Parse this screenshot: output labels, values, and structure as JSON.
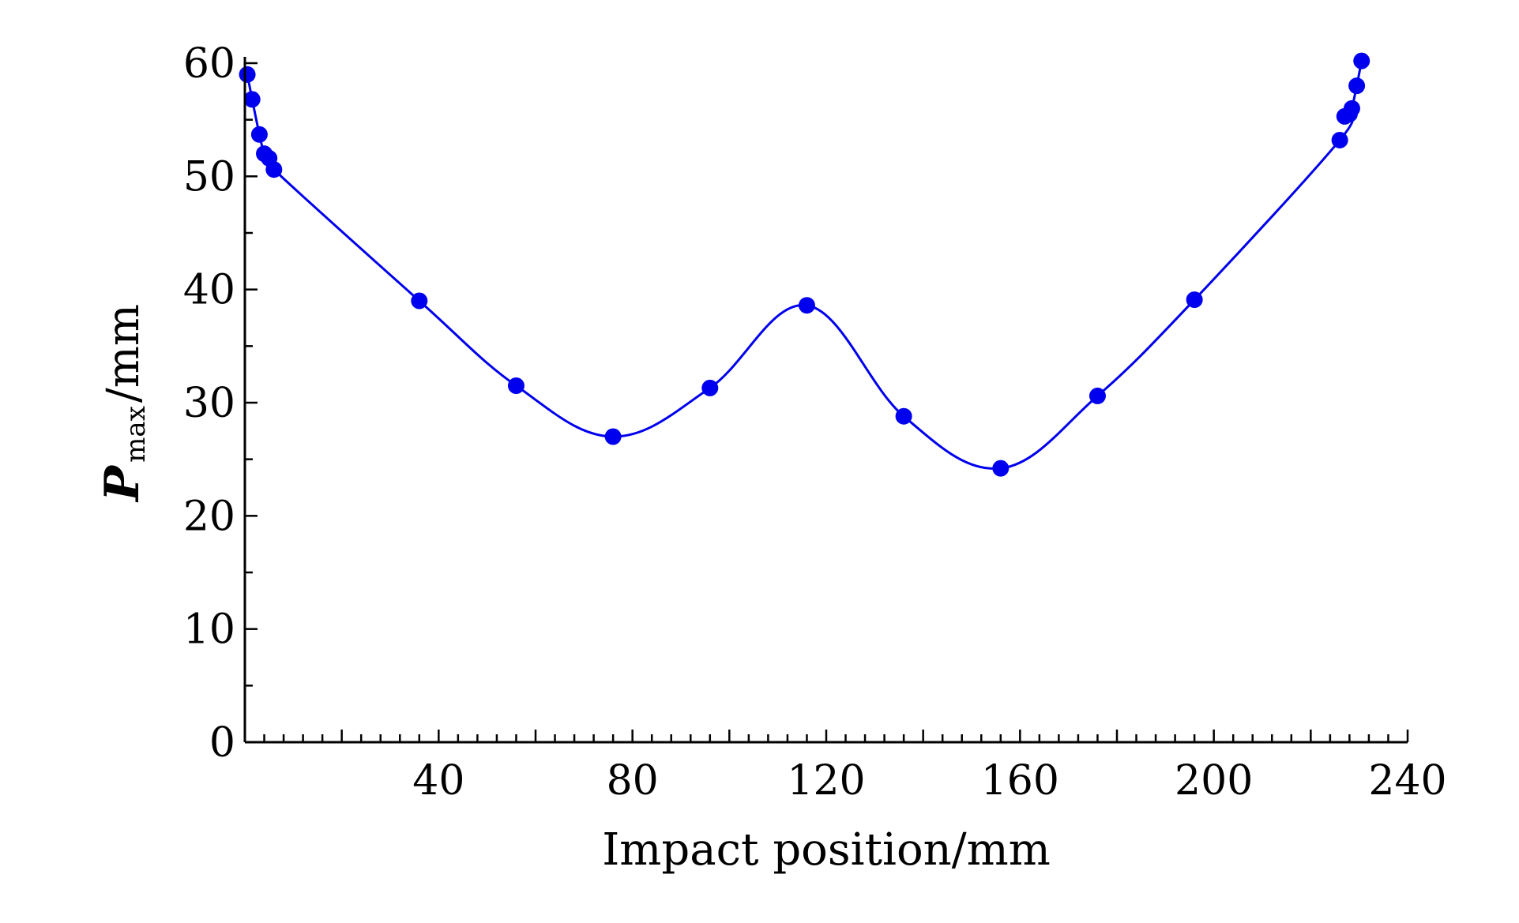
{
  "chart_data": {
    "type": "line",
    "title": "",
    "xlabel": "Impact position/mm",
    "ylabel": {
      "main": "P",
      "subscript": "max",
      "suffix": "/mm"
    },
    "xlim": [
      0,
      240
    ],
    "ylim": [
      0,
      60
    ],
    "x_ticks": [
      40,
      80,
      120,
      160,
      200,
      240
    ],
    "y_ticks": [
      0,
      10,
      20,
      30,
      40,
      50,
      60
    ],
    "x_minor_step": 4,
    "y_minor_step": 5,
    "series": [
      {
        "name": "Pmax",
        "color": "#0000ee",
        "marker": "circle",
        "x": [
          0.5,
          1.5,
          3,
          4,
          5,
          6,
          36,
          56,
          76,
          96,
          116,
          136,
          156,
          176,
          196,
          226,
          227,
          228,
          228.5,
          229.5,
          230.5
        ],
        "y": [
          59,
          56.8,
          53.7,
          52,
          51.6,
          50.6,
          39,
          31.5,
          27,
          31.3,
          38.6,
          28.8,
          24.2,
          30.6,
          39.1,
          53.2,
          55.3,
          55.5,
          56,
          58,
          60.2
        ]
      }
    ]
  }
}
